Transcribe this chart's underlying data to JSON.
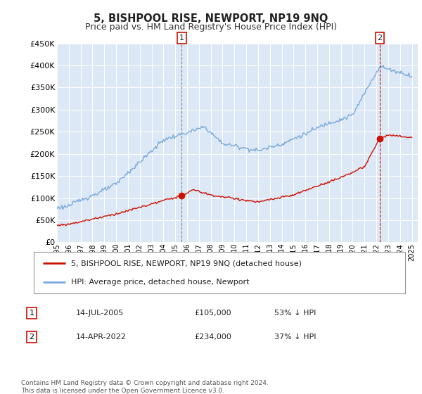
{
  "title": "5, BISHPOOL RISE, NEWPORT, NP19 9NQ",
  "subtitle": "Price paid vs. HM Land Registry's House Price Index (HPI)",
  "title_fontsize": 10.5,
  "subtitle_fontsize": 9,
  "background_color": "#ffffff",
  "plot_bg_color": "#dce8f5",
  "grid_color": "#ffffff",
  "ylim": [
    0,
    450000
  ],
  "yticks": [
    0,
    50000,
    100000,
    150000,
    200000,
    250000,
    300000,
    350000,
    400000,
    450000
  ],
  "ytick_labels": [
    "£0",
    "£50K",
    "£100K",
    "£150K",
    "£200K",
    "£250K",
    "£300K",
    "£350K",
    "£400K",
    "£450K"
  ],
  "xlim_start": 1995.0,
  "xlim_end": 2025.5,
  "xtick_years": [
    1995,
    1996,
    1997,
    1998,
    1999,
    2000,
    2001,
    2002,
    2003,
    2004,
    2005,
    2006,
    2007,
    2008,
    2009,
    2010,
    2011,
    2012,
    2013,
    2014,
    2015,
    2016,
    2017,
    2018,
    2019,
    2020,
    2021,
    2022,
    2023,
    2024,
    2025
  ],
  "hpi_color": "#7aaadd",
  "price_color": "#cc1100",
  "marker_color": "#cc1100",
  "vline1_color": "#888888",
  "vline2_color": "#cc1100",
  "transaction1": {
    "date_label": "14-JUL-2005",
    "x": 2005.54,
    "price": 105000,
    "pct": "53%",
    "label": "1"
  },
  "transaction2": {
    "date_label": "14-APR-2022",
    "x": 2022.28,
    "price": 234000,
    "pct": "37%",
    "label": "2"
  },
  "legend_line1": "5, BISHPOOL RISE, NEWPORT, NP19 9NQ (detached house)",
  "legend_line2": "HPI: Average price, detached house, Newport",
  "footnote": "Contains HM Land Registry data © Crown copyright and database right 2024.\nThis data is licensed under the Open Government Licence v3.0."
}
